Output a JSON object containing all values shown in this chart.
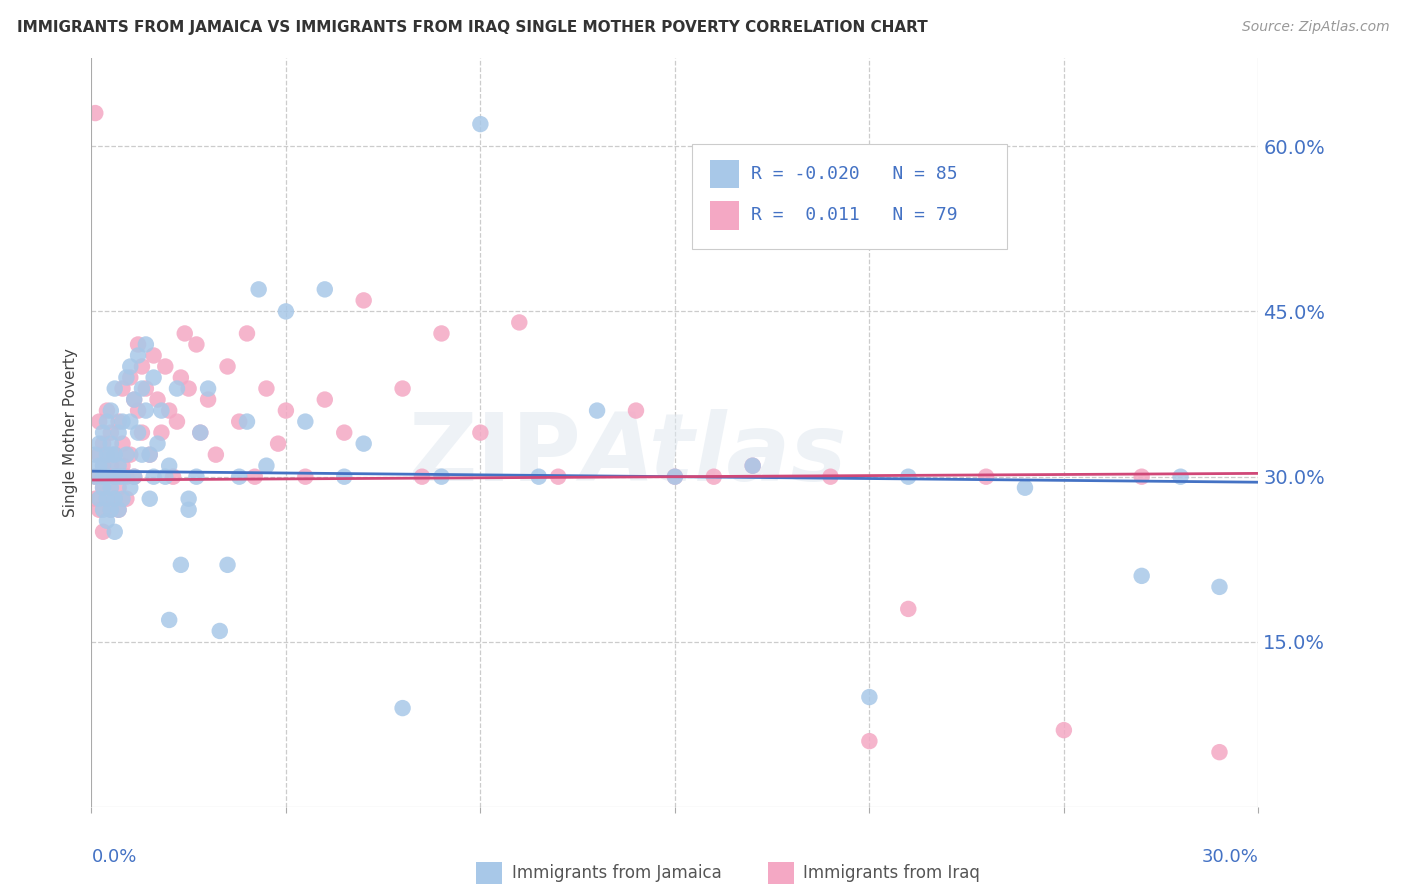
{
  "title": "IMMIGRANTS FROM JAMAICA VS IMMIGRANTS FROM IRAQ SINGLE MOTHER POVERTY CORRELATION CHART",
  "source": "Source: ZipAtlas.com",
  "ylabel": "Single Mother Poverty",
  "ytick_labels": [
    "15.0%",
    "30.0%",
    "45.0%",
    "60.0%"
  ],
  "ytick_values": [
    0.15,
    0.3,
    0.45,
    0.6
  ],
  "xlim": [
    0.0,
    0.3
  ],
  "ylim": [
    0.0,
    0.68
  ],
  "legend_label1": "Immigrants from Jamaica",
  "legend_label2": "Immigrants from Iraq",
  "R1": -0.02,
  "N1": 85,
  "R2": 0.011,
  "N2": 79,
  "color1": "#a8c8e8",
  "color2": "#f4a8c4",
  "line_color1": "#4472c4",
  "line_color2": "#d04878",
  "dpi": 100,
  "jamaica_x": [
    0.001,
    0.001,
    0.002,
    0.002,
    0.002,
    0.003,
    0.003,
    0.003,
    0.003,
    0.003,
    0.004,
    0.004,
    0.004,
    0.004,
    0.004,
    0.005,
    0.005,
    0.005,
    0.005,
    0.005,
    0.006,
    0.006,
    0.006,
    0.006,
    0.006,
    0.007,
    0.007,
    0.007,
    0.007,
    0.008,
    0.008,
    0.008,
    0.009,
    0.009,
    0.01,
    0.01,
    0.01,
    0.011,
    0.011,
    0.012,
    0.012,
    0.013,
    0.013,
    0.014,
    0.014,
    0.015,
    0.015,
    0.016,
    0.016,
    0.017,
    0.018,
    0.019,
    0.02,
    0.02,
    0.022,
    0.023,
    0.025,
    0.025,
    0.027,
    0.028,
    0.03,
    0.033,
    0.035,
    0.038,
    0.04,
    0.043,
    0.045,
    0.05,
    0.055,
    0.06,
    0.065,
    0.07,
    0.08,
    0.09,
    0.1,
    0.115,
    0.13,
    0.15,
    0.17,
    0.2,
    0.21,
    0.24,
    0.27,
    0.28,
    0.29
  ],
  "jamaica_y": [
    0.3,
    0.32,
    0.28,
    0.31,
    0.33,
    0.29,
    0.31,
    0.27,
    0.34,
    0.3,
    0.32,
    0.28,
    0.35,
    0.26,
    0.3,
    0.29,
    0.33,
    0.27,
    0.32,
    0.36,
    0.3,
    0.28,
    0.32,
    0.25,
    0.38,
    0.34,
    0.31,
    0.27,
    0.3,
    0.35,
    0.3,
    0.28,
    0.39,
    0.32,
    0.4,
    0.35,
    0.29,
    0.37,
    0.3,
    0.41,
    0.34,
    0.38,
    0.32,
    0.42,
    0.36,
    0.28,
    0.32,
    0.39,
    0.3,
    0.33,
    0.36,
    0.3,
    0.31,
    0.17,
    0.38,
    0.22,
    0.28,
    0.27,
    0.3,
    0.34,
    0.38,
    0.16,
    0.22,
    0.3,
    0.35,
    0.47,
    0.31,
    0.45,
    0.35,
    0.47,
    0.3,
    0.33,
    0.09,
    0.3,
    0.62,
    0.3,
    0.36,
    0.3,
    0.31,
    0.1,
    0.3,
    0.29,
    0.21,
    0.3,
    0.2
  ],
  "iraq_x": [
    0.001,
    0.001,
    0.001,
    0.002,
    0.002,
    0.002,
    0.003,
    0.003,
    0.003,
    0.003,
    0.004,
    0.004,
    0.004,
    0.005,
    0.005,
    0.005,
    0.006,
    0.006,
    0.006,
    0.007,
    0.007,
    0.007,
    0.008,
    0.008,
    0.008,
    0.009,
    0.009,
    0.01,
    0.01,
    0.011,
    0.011,
    0.012,
    0.012,
    0.013,
    0.013,
    0.014,
    0.015,
    0.016,
    0.017,
    0.018,
    0.019,
    0.02,
    0.021,
    0.022,
    0.023,
    0.024,
    0.025,
    0.027,
    0.028,
    0.03,
    0.032,
    0.035,
    0.038,
    0.04,
    0.042,
    0.045,
    0.048,
    0.05,
    0.055,
    0.06,
    0.065,
    0.07,
    0.08,
    0.085,
    0.09,
    0.1,
    0.11,
    0.12,
    0.14,
    0.15,
    0.16,
    0.17,
    0.19,
    0.2,
    0.21,
    0.23,
    0.25,
    0.27,
    0.29
  ],
  "iraq_y": [
    0.3,
    0.28,
    0.63,
    0.32,
    0.27,
    0.35,
    0.29,
    0.31,
    0.25,
    0.33,
    0.3,
    0.28,
    0.36,
    0.31,
    0.27,
    0.34,
    0.3,
    0.28,
    0.32,
    0.35,
    0.29,
    0.27,
    0.33,
    0.38,
    0.31,
    0.3,
    0.28,
    0.39,
    0.32,
    0.37,
    0.3,
    0.42,
    0.36,
    0.4,
    0.34,
    0.38,
    0.32,
    0.41,
    0.37,
    0.34,
    0.4,
    0.36,
    0.3,
    0.35,
    0.39,
    0.43,
    0.38,
    0.42,
    0.34,
    0.37,
    0.32,
    0.4,
    0.35,
    0.43,
    0.3,
    0.38,
    0.33,
    0.36,
    0.3,
    0.37,
    0.34,
    0.46,
    0.38,
    0.3,
    0.43,
    0.34,
    0.44,
    0.3,
    0.36,
    0.3,
    0.3,
    0.31,
    0.3,
    0.06,
    0.18,
    0.3,
    0.07,
    0.3,
    0.05
  ]
}
